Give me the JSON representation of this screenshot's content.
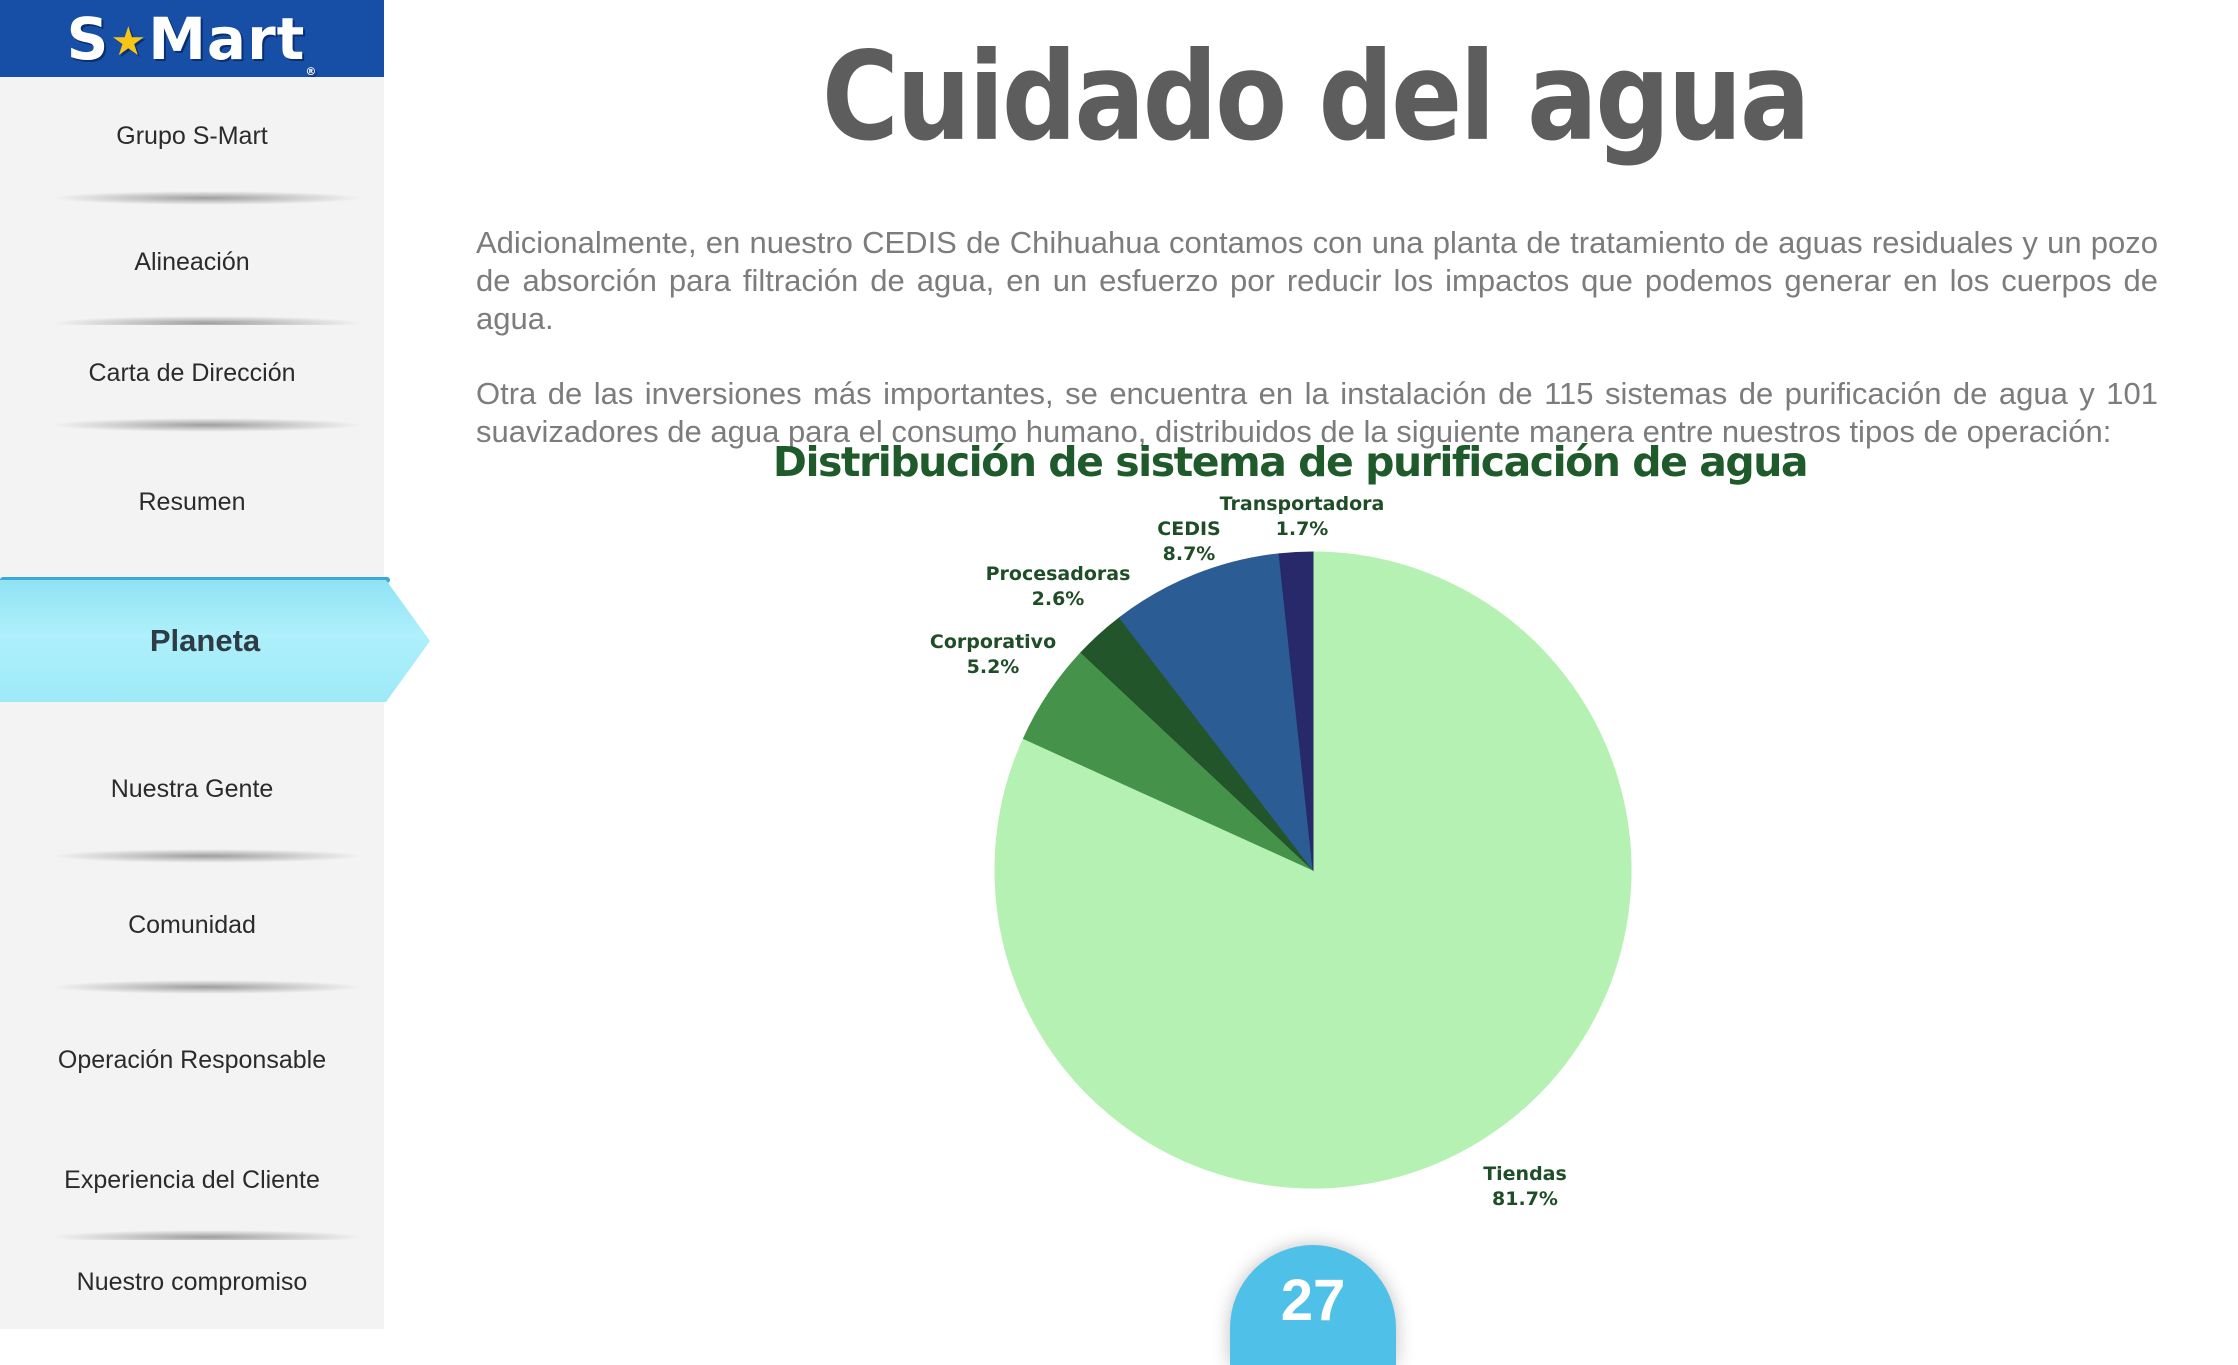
{
  "logo": {
    "prefix": "S",
    "star": "★",
    "suffix": "Mart",
    "reg": "®"
  },
  "sidebar": {
    "items": [
      {
        "label": "Grupo S-Mart"
      },
      {
        "label": "Alineación"
      },
      {
        "label": "Carta de Dirección"
      },
      {
        "label": "Resumen"
      },
      {
        "label": "Planeta",
        "active": true
      },
      {
        "label": "Nuestra Gente"
      },
      {
        "label": "Comunidad"
      },
      {
        "label": "Operación Responsable"
      },
      {
        "label": "Experiencia del Cliente"
      },
      {
        "label": "Nuestro compromiso"
      }
    ]
  },
  "main": {
    "title": "Cuidado del agua",
    "paragraphs": [
      "Adicionalmente, en nuestro CEDIS de Chihuahua contamos con una planta de tratamiento de aguas residuales y un pozo de absorción para filtración de agua, en un esfuerzo por reducir los impactos que podemos generar en los cuerpos de agua.",
      "Otra de las inversiones más importantes, se encuentra en la instalación de 115 sistemas de purificación de agua y 101 suavizadores de agua para el consumo humano, distribuidos de la siguiente manera entre nuestros tipos de operación:"
    ]
  },
  "chart_data": {
    "type": "pie",
    "title": "Distribución de sistema de purificación de agua",
    "slices": [
      {
        "label": "Tiendas",
        "value": 81.7,
        "display": "81.7%",
        "color": "#b5f1b3"
      },
      {
        "label": "Corporativo",
        "value": 5.2,
        "display": "5.2%",
        "color": "#45934a"
      },
      {
        "label": "Procesadoras",
        "value": 2.6,
        "display": "2.6%",
        "color": "#23552a"
      },
      {
        "label": "CEDIS",
        "value": 8.7,
        "display": "8.7%",
        "color": "#2c5c94"
      },
      {
        "label": "Transportadora",
        "value": 1.7,
        "display": "1.7%",
        "color": "#27296a"
      }
    ]
  },
  "page": {
    "number": "27"
  },
  "colors": {
    "sidebar_active": "#aef0fb",
    "logo_bg": "#174ea6",
    "badge": "#4fc1e9",
    "title": "#5d5d5d"
  }
}
